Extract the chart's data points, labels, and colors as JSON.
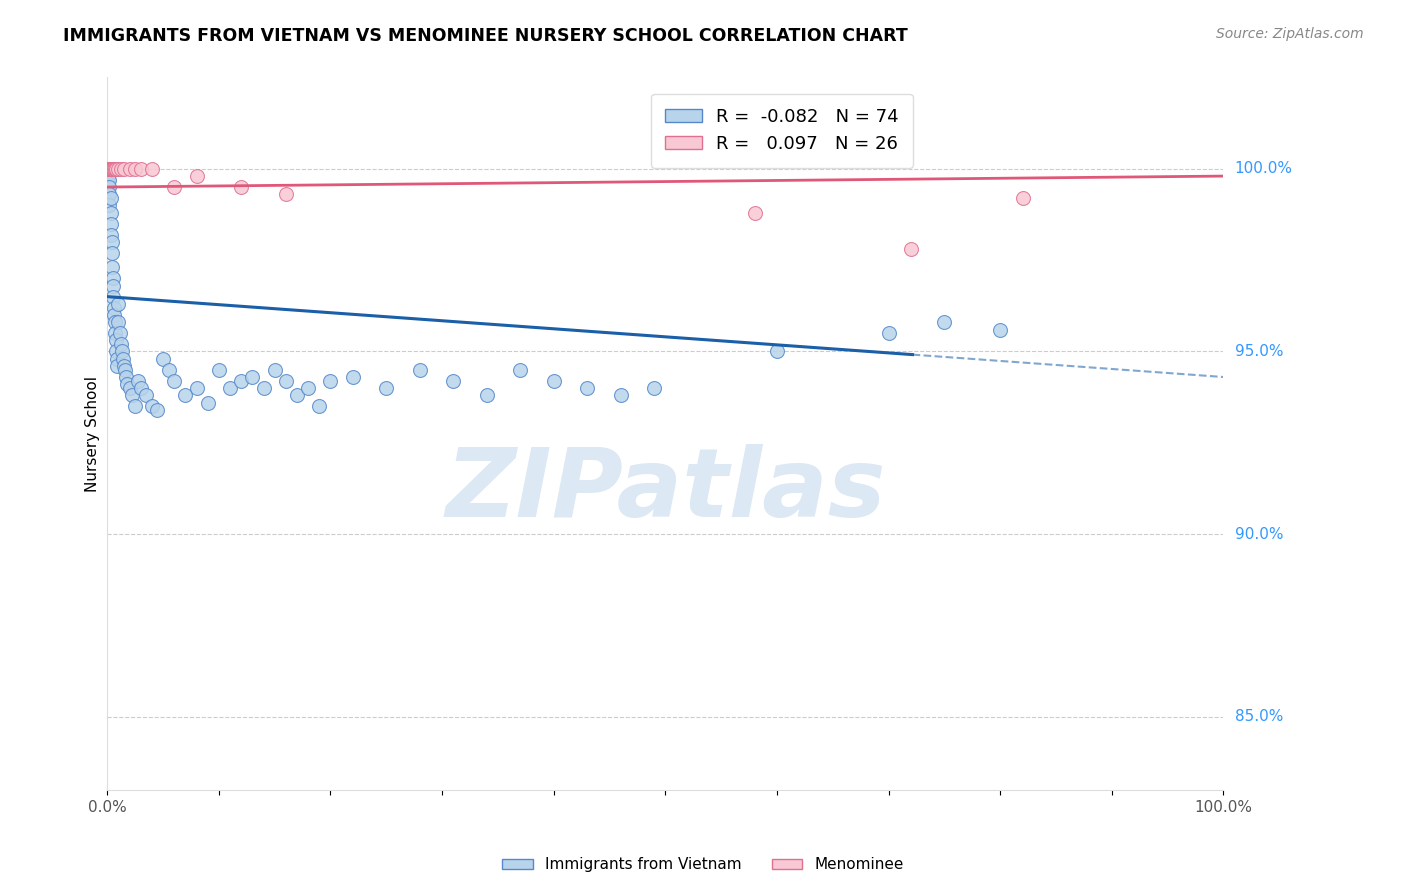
{
  "title": "IMMIGRANTS FROM VIETNAM VS MENOMINEE NURSERY SCHOOL CORRELATION CHART",
  "source": "Source: ZipAtlas.com",
  "ylabel": "Nursery School",
  "xlim": [
    0.0,
    1.0
  ],
  "ylim": [
    83.0,
    102.5
  ],
  "blue_R": -0.082,
  "blue_N": 74,
  "pink_R": 0.097,
  "pink_N": 26,
  "blue_color": "#b8d4ea",
  "blue_edge_color": "#5588cc",
  "blue_line_color": "#1a5fa8",
  "pink_color": "#f8c8d4",
  "pink_edge_color": "#e07090",
  "pink_line_color": "#e05878",
  "marker_size": 100,
  "watermark_text": "ZIPatlas",
  "watermark_color": "#dde8f5",
  "right_ytick_vals": [
    85.0,
    90.0,
    95.0,
    100.0
  ],
  "right_ytick_labels": [
    "85.0%",
    "90.0%",
    "95.0%",
    "100.0%"
  ],
  "blue_scatter_x": [
    0.001,
    0.001,
    0.001,
    0.002,
    0.002,
    0.002,
    0.002,
    0.003,
    0.003,
    0.003,
    0.003,
    0.004,
    0.004,
    0.004,
    0.005,
    0.005,
    0.005,
    0.006,
    0.006,
    0.007,
    0.007,
    0.008,
    0.008,
    0.009,
    0.009,
    0.01,
    0.01,
    0.011,
    0.012,
    0.013,
    0.014,
    0.015,
    0.016,
    0.017,
    0.018,
    0.02,
    0.022,
    0.025,
    0.028,
    0.03,
    0.035,
    0.04,
    0.045,
    0.05,
    0.055,
    0.06,
    0.07,
    0.08,
    0.09,
    0.1,
    0.11,
    0.12,
    0.13,
    0.14,
    0.15,
    0.16,
    0.17,
    0.18,
    0.19,
    0.2,
    0.22,
    0.25,
    0.28,
    0.31,
    0.34,
    0.37,
    0.4,
    0.43,
    0.46,
    0.49,
    0.6,
    0.7,
    0.75,
    0.8
  ],
  "blue_scatter_y": [
    100.0,
    99.8,
    99.6,
    99.7,
    99.5,
    99.3,
    99.0,
    99.2,
    98.8,
    98.5,
    98.2,
    98.0,
    97.7,
    97.3,
    97.0,
    96.8,
    96.5,
    96.2,
    96.0,
    95.8,
    95.5,
    95.3,
    95.0,
    94.8,
    94.6,
    96.3,
    95.8,
    95.5,
    95.2,
    95.0,
    94.8,
    94.6,
    94.5,
    94.3,
    94.1,
    94.0,
    93.8,
    93.5,
    94.2,
    94.0,
    93.8,
    93.5,
    93.4,
    94.8,
    94.5,
    94.2,
    93.8,
    94.0,
    93.6,
    94.5,
    94.0,
    94.2,
    94.3,
    94.0,
    94.5,
    94.2,
    93.8,
    94.0,
    93.5,
    94.2,
    94.3,
    94.0,
    94.5,
    94.2,
    93.8,
    94.5,
    94.2,
    94.0,
    93.8,
    94.0,
    95.0,
    95.5,
    95.8,
    95.6
  ],
  "pink_scatter_x": [
    0.001,
    0.001,
    0.002,
    0.002,
    0.003,
    0.003,
    0.004,
    0.004,
    0.005,
    0.006,
    0.007,
    0.008,
    0.01,
    0.012,
    0.015,
    0.02,
    0.025,
    0.03,
    0.04,
    0.06,
    0.08,
    0.12,
    0.16,
    0.58,
    0.72,
    0.82
  ],
  "pink_scatter_y": [
    100.0,
    100.0,
    100.0,
    100.0,
    100.0,
    100.0,
    100.0,
    100.0,
    100.0,
    100.0,
    100.0,
    100.0,
    100.0,
    100.0,
    100.0,
    100.0,
    100.0,
    100.0,
    100.0,
    99.5,
    99.8,
    99.5,
    99.3,
    98.8,
    97.8,
    99.2
  ]
}
